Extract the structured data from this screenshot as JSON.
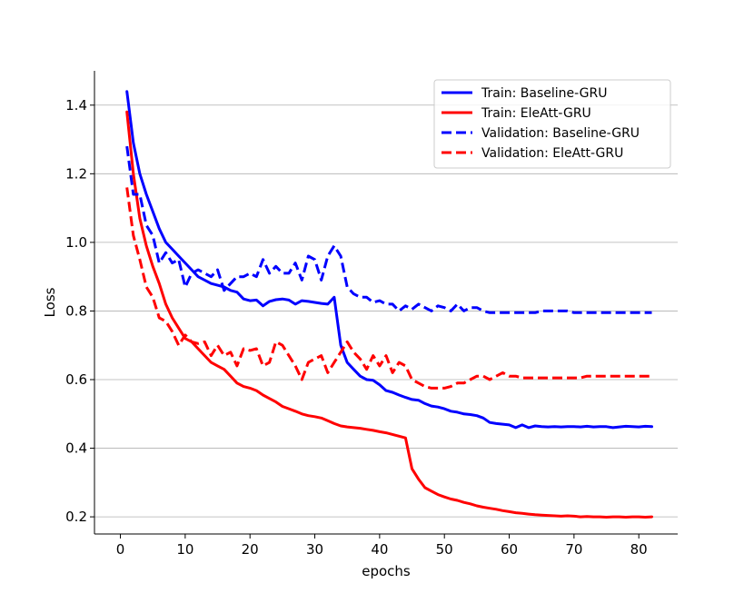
{
  "chart_data": {
    "type": "line",
    "title": "",
    "xlabel": "epochs",
    "ylabel": "Loss",
    "xlim": [
      -4,
      86
    ],
    "ylim": [
      0.15,
      1.5
    ],
    "xticks": [
      0,
      10,
      20,
      30,
      40,
      50,
      60,
      70,
      80
    ],
    "yticks": [
      0.2,
      0.4,
      0.6,
      0.8,
      1.0,
      1.2,
      1.4
    ],
    "ytick_labels": [
      "0.2",
      "0.4",
      "0.6",
      "0.8",
      "1.0",
      "1.2",
      "1.4"
    ],
    "grid": "horizontal",
    "legend_position": "top-right",
    "series": [
      {
        "name": "Train: Baseline-GRU",
        "color": "#0000ff",
        "style": "solid",
        "x": [
          1,
          2,
          3,
          4,
          5,
          6,
          7,
          8,
          9,
          10,
          11,
          12,
          13,
          14,
          15,
          16,
          17,
          18,
          19,
          20,
          21,
          22,
          23,
          24,
          25,
          26,
          27,
          28,
          29,
          30,
          31,
          32,
          33,
          34,
          35,
          36,
          37,
          38,
          39,
          40,
          41,
          42,
          43,
          44,
          45,
          46,
          47,
          48,
          49,
          50,
          51,
          52,
          53,
          54,
          55,
          56,
          57,
          58,
          59,
          60,
          61,
          62,
          63,
          64,
          65,
          66,
          67,
          68,
          69,
          70,
          71,
          72,
          73,
          74,
          75,
          76,
          77,
          78,
          79,
          80,
          81,
          82
        ],
        "y": [
          1.44,
          1.29,
          1.2,
          1.14,
          1.09,
          1.04,
          1.0,
          0.98,
          0.96,
          0.94,
          0.92,
          0.9,
          0.89,
          0.88,
          0.875,
          0.87,
          0.86,
          0.855,
          0.835,
          0.83,
          0.832,
          0.815,
          0.828,
          0.833,
          0.835,
          0.832,
          0.82,
          0.83,
          0.828,
          0.825,
          0.822,
          0.82,
          0.84,
          0.7,
          0.65,
          0.63,
          0.61,
          0.6,
          0.598,
          0.585,
          0.568,
          0.563,
          0.555,
          0.548,
          0.542,
          0.54,
          0.53,
          0.523,
          0.52,
          0.515,
          0.508,
          0.505,
          0.5,
          0.498,
          0.495,
          0.488,
          0.475,
          0.472,
          0.47,
          0.468,
          0.46,
          0.468,
          0.46,
          0.465,
          0.463,
          0.462,
          0.463,
          0.462,
          0.463,
          0.463,
          0.462,
          0.464,
          0.462,
          0.463,
          0.463,
          0.46,
          0.462,
          0.464,
          0.463,
          0.462,
          0.464,
          0.463
        ]
      },
      {
        "name": "Train: EleAtt-GRU",
        "color": "#ff0000",
        "style": "solid",
        "x": [
          1,
          2,
          3,
          4,
          5,
          6,
          7,
          8,
          9,
          10,
          11,
          12,
          13,
          14,
          15,
          16,
          17,
          18,
          19,
          20,
          21,
          22,
          23,
          24,
          25,
          26,
          27,
          28,
          29,
          30,
          31,
          32,
          33,
          34,
          35,
          36,
          37,
          38,
          39,
          40,
          41,
          42,
          43,
          44,
          45,
          46,
          47,
          48,
          49,
          50,
          51,
          52,
          53,
          54,
          55,
          56,
          57,
          58,
          59,
          60,
          61,
          62,
          63,
          64,
          65,
          66,
          67,
          68,
          69,
          70,
          71,
          72,
          73,
          74,
          75,
          76,
          77,
          78,
          79,
          80,
          81,
          82
        ],
        "y": [
          1.38,
          1.2,
          1.07,
          0.99,
          0.93,
          0.88,
          0.82,
          0.78,
          0.75,
          0.72,
          0.71,
          0.69,
          0.67,
          0.65,
          0.64,
          0.63,
          0.61,
          0.59,
          0.58,
          0.575,
          0.568,
          0.555,
          0.545,
          0.535,
          0.522,
          0.515,
          0.508,
          0.5,
          0.495,
          0.492,
          0.488,
          0.48,
          0.472,
          0.465,
          0.462,
          0.46,
          0.458,
          0.455,
          0.452,
          0.448,
          0.445,
          0.44,
          0.435,
          0.43,
          0.34,
          0.31,
          0.285,
          0.275,
          0.265,
          0.258,
          0.252,
          0.248,
          0.242,
          0.238,
          0.232,
          0.228,
          0.225,
          0.222,
          0.218,
          0.215,
          0.212,
          0.21,
          0.208,
          0.206,
          0.205,
          0.204,
          0.203,
          0.202,
          0.203,
          0.202,
          0.2,
          0.201,
          0.2,
          0.2,
          0.199,
          0.2,
          0.2,
          0.199,
          0.2,
          0.2,
          0.199,
          0.2
        ]
      },
      {
        "name": "Validation: Baseline-GRU",
        "color": "#0000ff",
        "style": "dashed",
        "x": [
          1,
          2,
          3,
          4,
          5,
          6,
          7,
          8,
          9,
          10,
          11,
          12,
          13,
          14,
          15,
          16,
          17,
          18,
          19,
          20,
          21,
          22,
          23,
          24,
          25,
          26,
          27,
          28,
          29,
          30,
          31,
          32,
          33,
          34,
          35,
          36,
          37,
          38,
          39,
          40,
          41,
          42,
          43,
          44,
          45,
          46,
          47,
          48,
          49,
          50,
          51,
          52,
          53,
          54,
          55,
          56,
          57,
          58,
          59,
          60,
          61,
          62,
          63,
          64,
          65,
          66,
          67,
          68,
          69,
          70,
          71,
          72,
          73,
          74,
          75,
          76,
          77,
          78,
          79,
          80,
          81,
          82
        ],
        "y": [
          1.28,
          1.14,
          1.14,
          1.05,
          1.02,
          0.94,
          0.97,
          0.94,
          0.95,
          0.87,
          0.91,
          0.92,
          0.91,
          0.9,
          0.92,
          0.86,
          0.88,
          0.9,
          0.9,
          0.91,
          0.9,
          0.95,
          0.91,
          0.93,
          0.91,
          0.91,
          0.94,
          0.89,
          0.96,
          0.95,
          0.89,
          0.96,
          0.99,
          0.96,
          0.87,
          0.85,
          0.84,
          0.84,
          0.825,
          0.83,
          0.82,
          0.82,
          0.8,
          0.815,
          0.805,
          0.82,
          0.81,
          0.8,
          0.815,
          0.81,
          0.8,
          0.82,
          0.8,
          0.81,
          0.81,
          0.8,
          0.795,
          0.795,
          0.795,
          0.795,
          0.795,
          0.795,
          0.795,
          0.795,
          0.8,
          0.8,
          0.8,
          0.8,
          0.8,
          0.795,
          0.795,
          0.795,
          0.795,
          0.795,
          0.795,
          0.795,
          0.795,
          0.795,
          0.795,
          0.795,
          0.795,
          0.795
        ]
      },
      {
        "name": "Validation: EleAtt-GRU",
        "color": "#ff0000",
        "style": "dashed",
        "x": [
          1,
          2,
          3,
          4,
          5,
          6,
          7,
          8,
          9,
          10,
          11,
          12,
          13,
          14,
          15,
          16,
          17,
          18,
          19,
          20,
          21,
          22,
          23,
          24,
          25,
          26,
          27,
          28,
          29,
          30,
          31,
          32,
          33,
          34,
          35,
          36,
          37,
          38,
          39,
          40,
          41,
          42,
          43,
          44,
          45,
          46,
          47,
          48,
          49,
          50,
          51,
          52,
          53,
          54,
          55,
          56,
          57,
          58,
          59,
          60,
          61,
          62,
          63,
          64,
          65,
          66,
          67,
          68,
          69,
          70,
          71,
          72,
          73,
          74,
          75,
          76,
          77,
          78,
          79,
          80,
          81,
          82
        ],
        "y": [
          1.16,
          1.02,
          0.95,
          0.87,
          0.84,
          0.78,
          0.77,
          0.74,
          0.7,
          0.73,
          0.71,
          0.705,
          0.71,
          0.67,
          0.7,
          0.67,
          0.68,
          0.64,
          0.69,
          0.685,
          0.69,
          0.64,
          0.65,
          0.71,
          0.7,
          0.67,
          0.64,
          0.6,
          0.65,
          0.66,
          0.67,
          0.62,
          0.65,
          0.68,
          0.71,
          0.68,
          0.66,
          0.63,
          0.67,
          0.64,
          0.67,
          0.62,
          0.65,
          0.64,
          0.6,
          0.59,
          0.58,
          0.575,
          0.575,
          0.575,
          0.58,
          0.59,
          0.59,
          0.6,
          0.61,
          0.61,
          0.6,
          0.61,
          0.62,
          0.61,
          0.61,
          0.605,
          0.605,
          0.605,
          0.605,
          0.605,
          0.605,
          0.605,
          0.605,
          0.605,
          0.605,
          0.61,
          0.61,
          0.61,
          0.61,
          0.61,
          0.61,
          0.61,
          0.61,
          0.61,
          0.61,
          0.61
        ]
      }
    ]
  }
}
